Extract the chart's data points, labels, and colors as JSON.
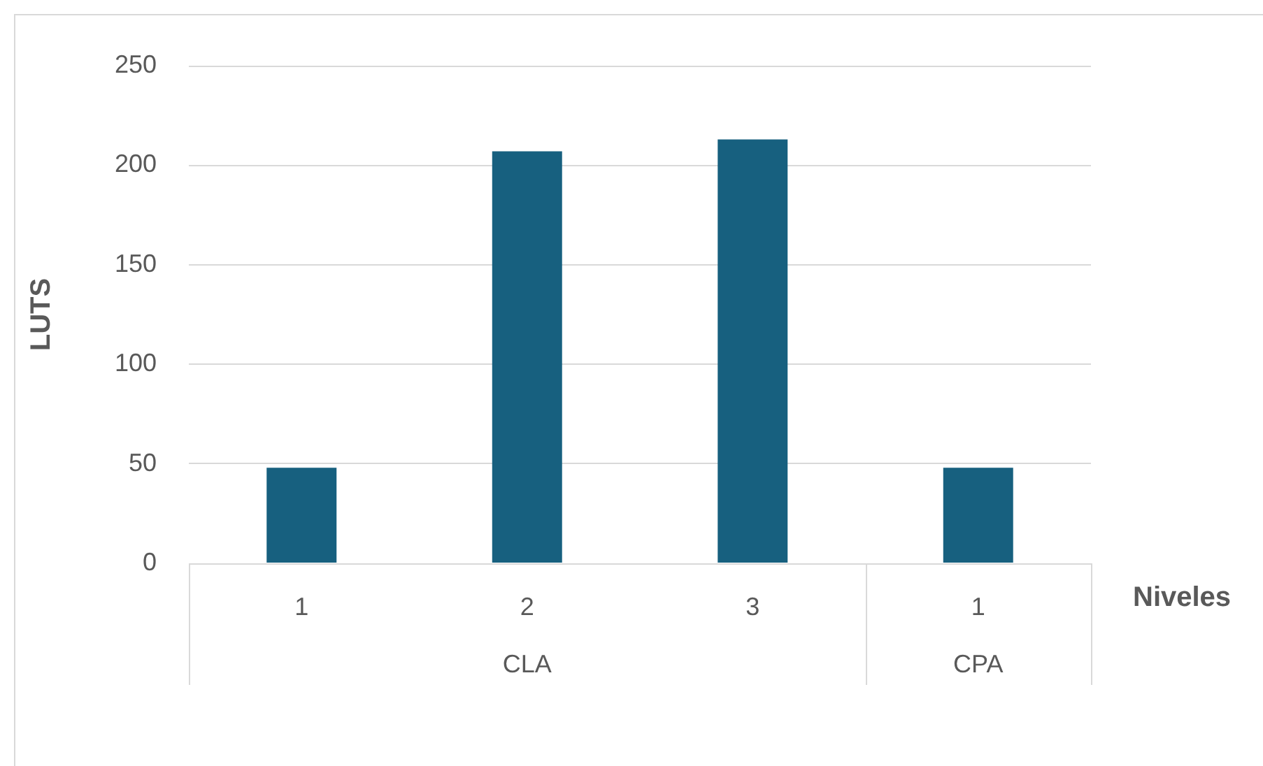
{
  "chart_data": {
    "type": "bar",
    "categories": [
      "1",
      "2",
      "3",
      "1"
    ],
    "values": [
      48,
      207,
      213,
      48
    ],
    "color": "#17607f",
    "ylim": [
      0,
      250
    ],
    "yticks": [
      0,
      50,
      100,
      150,
      200,
      250
    ],
    "grid": "y",
    "xlabel": "Niveles",
    "ylabel": "LUTS",
    "annotations": [
      "CLA",
      "CPA"
    ]
  }
}
